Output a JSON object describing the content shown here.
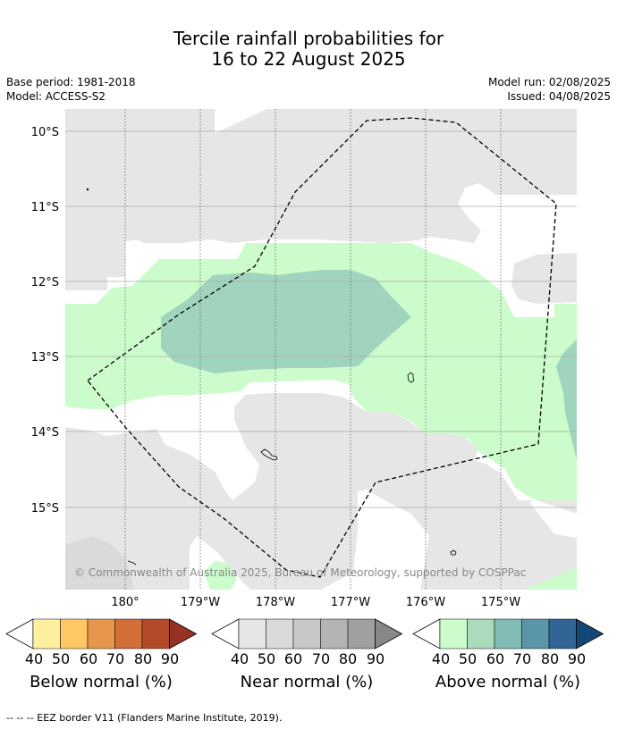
{
  "header": {
    "title_line1": "Tercile rainfall probabilities for",
    "title_line2": "16 to 22 August 2025",
    "base_period": "Base period: 1981-2018",
    "model": "Model: ACCESS-S2",
    "model_run": "Model run: 02/08/2025",
    "issued": "Issued: 04/08/2025"
  },
  "map": {
    "lat_labels": [
      "10°S",
      "11°S",
      "12°S",
      "13°S",
      "14°S",
      "15°S"
    ],
    "lon_labels": [
      "180°",
      "179°W",
      "178°W",
      "177°W",
      "176°W",
      "175°W"
    ],
    "copyright": "© Commonwealth of Australia 2025, Bureau of Meteorology, supported by COSPPac",
    "colors": {
      "near_normal_40": "#e6e6e6",
      "above_normal_40": "#ccfccc",
      "above_normal_50": "#a0d4be",
      "land_outline": "#000000",
      "eez_border": "#000000"
    }
  },
  "legend": {
    "tick_labels": [
      "40",
      "50",
      "60",
      "70",
      "80",
      "90"
    ],
    "below": {
      "label": "Below normal (%)",
      "colors": [
        "#fff0a0",
        "#ffc864",
        "#e6964b",
        "#d26e37",
        "#b44b28",
        "#963223"
      ]
    },
    "near": {
      "label": "Near normal (%)",
      "colors": [
        "#e6e6e6",
        "#d9d9d9",
        "#c8c8c8",
        "#b4b4b4",
        "#a0a0a0",
        "#878787"
      ]
    },
    "above": {
      "label": "Above normal (%)",
      "colors": [
        "#ccfccc",
        "#a8dcbc",
        "#82bab4",
        "#5a96a8",
        "#326496",
        "#144678"
      ]
    }
  },
  "footer": "--  --  -- EEZ border V11 (Flanders Marine Institute, 2019)."
}
